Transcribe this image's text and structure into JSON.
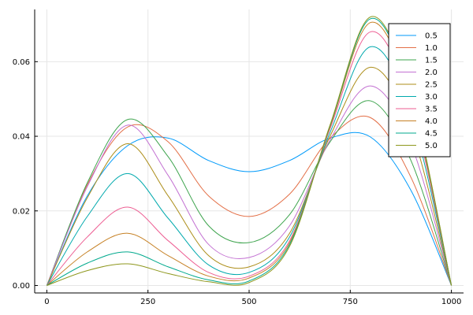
{
  "chart_data": {
    "type": "line",
    "title": "",
    "xlabel": "",
    "ylabel": "",
    "xlim": [
      -30,
      1030
    ],
    "ylim": [
      -0.002,
      0.074
    ],
    "x_ticks": [
      0,
      250,
      500,
      750,
      1000
    ],
    "x_tick_labels": [
      "0",
      "250",
      "500",
      "750",
      "1000"
    ],
    "y_ticks": [
      0.0,
      0.02,
      0.04,
      0.06
    ],
    "y_tick_labels": [
      "0.00",
      "0.02",
      "0.04",
      "0.06"
    ],
    "grid": true,
    "legend_position": "top-right",
    "x": [
      0,
      100,
      200,
      300,
      400,
      500,
      600,
      700,
      800,
      900,
      1000
    ],
    "series": [
      {
        "name": "0.5",
        "color": "#009AFA",
        "values": [
          0.0,
          0.024,
          0.0375,
          0.0395,
          0.0335,
          0.0305,
          0.0335,
          0.0395,
          0.0398,
          0.0255,
          0.0
        ]
      },
      {
        "name": "1.0",
        "color": "#E36F47",
        "values": [
          0.0,
          0.027,
          0.0425,
          0.0385,
          0.024,
          0.0185,
          0.0245,
          0.0395,
          0.045,
          0.029,
          0.0
        ]
      },
      {
        "name": "1.5",
        "color": "#3EA44E",
        "values": [
          0.0,
          0.0275,
          0.0445,
          0.0345,
          0.016,
          0.0115,
          0.019,
          0.0385,
          0.0495,
          0.0335,
          0.0
        ]
      },
      {
        "name": "2.0",
        "color": "#C371D2",
        "values": [
          0.0,
          0.0265,
          0.043,
          0.0295,
          0.011,
          0.0075,
          0.016,
          0.039,
          0.0535,
          0.038,
          0.0
        ]
      },
      {
        "name": "2.5",
        "color": "#AC8D18",
        "values": [
          0.0,
          0.0235,
          0.038,
          0.024,
          0.008,
          0.005,
          0.014,
          0.04,
          0.0585,
          0.042,
          0.0
        ]
      },
      {
        "name": "3.0",
        "color": "#00A9AD",
        "values": [
          0.0,
          0.0185,
          0.03,
          0.018,
          0.0055,
          0.0035,
          0.013,
          0.041,
          0.064,
          0.046,
          0.0
        ]
      },
      {
        "name": "3.5",
        "color": "#ED5D92",
        "values": [
          0.0,
          0.013,
          0.021,
          0.012,
          0.0035,
          0.0025,
          0.012,
          0.042,
          0.068,
          0.0485,
          0.0
        ]
      },
      {
        "name": "4.0",
        "color": "#C68125",
        "values": [
          0.0,
          0.009,
          0.014,
          0.008,
          0.0025,
          0.002,
          0.0115,
          0.0425,
          0.0705,
          0.05,
          0.0
        ]
      },
      {
        "name": "4.5",
        "color": "#00A98D",
        "values": [
          0.0,
          0.006,
          0.009,
          0.005,
          0.0015,
          0.0012,
          0.011,
          0.0428,
          0.0715,
          0.0508,
          0.0
        ]
      },
      {
        "name": "5.0",
        "color": "#8E971D",
        "values": [
          0.0,
          0.004,
          0.0058,
          0.0032,
          0.001,
          0.0008,
          0.0105,
          0.043,
          0.072,
          0.0512,
          0.0
        ]
      }
    ]
  }
}
